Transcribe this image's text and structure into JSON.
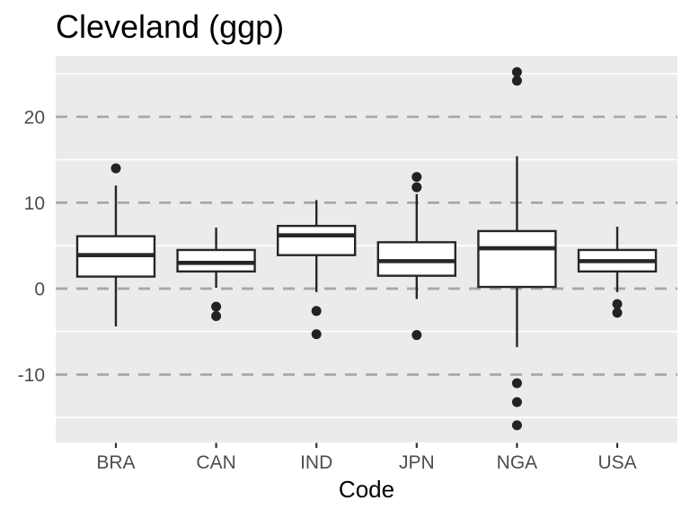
{
  "chart_data": {
    "type": "boxplot",
    "title": "Cleveland (ggp)",
    "xlabel": "Code",
    "ylabel": "",
    "categories": [
      "BRA",
      "CAN",
      "IND",
      "JPN",
      "NGA",
      "USA"
    ],
    "series": [
      {
        "category": "BRA",
        "whisker_low": -4.4,
        "q1": 1.4,
        "median": 3.9,
        "q3": 6.1,
        "whisker_high": 12.0,
        "outliers": [
          14.0
        ]
      },
      {
        "category": "CAN",
        "whisker_low": 0.1,
        "q1": 2.0,
        "median": 3.0,
        "q3": 4.5,
        "whisker_high": 7.1,
        "outliers": [
          -2.1,
          -3.2
        ]
      },
      {
        "category": "IND",
        "whisker_low": -0.4,
        "q1": 3.9,
        "median": 6.2,
        "q3": 7.3,
        "whisker_high": 10.3,
        "outliers": [
          -2.6,
          -5.3
        ]
      },
      {
        "category": "JPN",
        "whisker_low": -1.2,
        "q1": 1.5,
        "median": 3.2,
        "q3": 5.4,
        "whisker_high": 11.0,
        "outliers": [
          13.0,
          11.8,
          -5.4
        ]
      },
      {
        "category": "NGA",
        "whisker_low": -6.8,
        "q1": 0.2,
        "median": 4.7,
        "q3": 6.7,
        "whisker_high": 15.4,
        "outliers": [
          25.2,
          24.2,
          -11.0,
          -13.2,
          -15.9
        ]
      },
      {
        "category": "USA",
        "whisker_low": -0.4,
        "q1": 2.0,
        "median": 3.2,
        "q3": 4.5,
        "whisker_high": 7.2,
        "outliers": [
          -1.8,
          -2.8
        ]
      }
    ],
    "y_axis": {
      "ticks": [
        20,
        10,
        0,
        -10
      ],
      "minor_ticks": [
        25,
        15,
        5,
        -5,
        -15
      ],
      "ylim": [
        -17.9,
        27.1
      ]
    },
    "grid": {
      "major": "dashed",
      "minor": "solid",
      "visible": true
    },
    "legend": "none",
    "colors": {
      "panel_bg": "#EBEBEB",
      "major_grid": "#A8A8A8",
      "minor_grid": "#FFFFFF",
      "box_stroke": "#262626",
      "box_fill": "#FFFFFF",
      "outlier": "#222222",
      "axis_text": "#4D4D4D",
      "tick_mark": "#333333"
    }
  }
}
